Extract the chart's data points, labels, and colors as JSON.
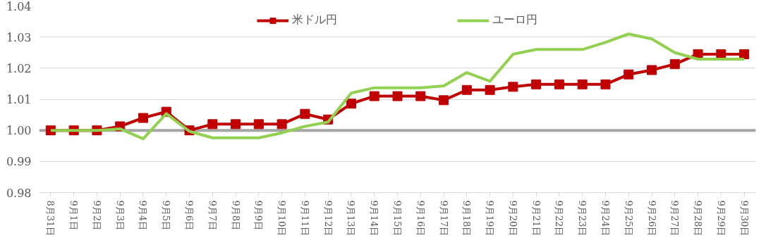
{
  "chart_data": {
    "type": "line",
    "categories": [
      "8月31日",
      "9月1日",
      "9月2日",
      "9月3日",
      "9月4日",
      "9月5日",
      "9月6日",
      "9月7日",
      "9月8日",
      "9月9日",
      "9月10日",
      "9月11日",
      "9月12日",
      "9月13日",
      "9月14日",
      "9月15日",
      "9月16日",
      "9月17日",
      "9月18日",
      "9月19日",
      "9月20日",
      "9月21日",
      "9月22日",
      "9月23日",
      "9月24日",
      "9月25日",
      "9月26日",
      "9月27日",
      "9月28日",
      "9月29日",
      "9月30日"
    ],
    "series": [
      {
        "name": "米ドル円",
        "color": "#c00000",
        "marker": "square",
        "values": [
          1.0,
          1.0,
          1.0,
          1.0013,
          1.004,
          1.006,
          1.0,
          1.002,
          1.002,
          1.002,
          1.002,
          1.0053,
          1.0035,
          1.0086,
          1.011,
          1.011,
          1.011,
          1.0097,
          1.013,
          1.013,
          1.014,
          1.0148,
          1.0148,
          1.0148,
          1.0148,
          1.018,
          1.0194,
          1.0213,
          1.0245,
          1.0245,
          1.0245
        ]
      },
      {
        "name": "ユーロ円",
        "color": "#92d050",
        "marker": "none",
        "values": [
          1.0,
          1.0,
          1.0,
          1.0005,
          0.9973,
          1.0054,
          0.9997,
          0.9976,
          0.9976,
          0.9976,
          0.9992,
          1.0013,
          1.0027,
          1.012,
          1.0137,
          1.0137,
          1.0137,
          1.0143,
          1.0186,
          1.0158,
          1.0245,
          1.026,
          1.026,
          1.026,
          1.0283,
          1.031,
          1.0294,
          1.025,
          1.0229,
          1.0229,
          1.0229
        ]
      }
    ],
    "ref_lines": [
      {
        "axis": "y",
        "value": 1.0,
        "label": null,
        "color": "#a5a5a5"
      }
    ],
    "ylim": [
      0.98,
      1.04
    ],
    "yticks": [
      {
        "value": 0.98,
        "label": "0.98"
      },
      {
        "value": 0.99,
        "label": "0.99"
      },
      {
        "value": 1.0,
        "label": "1.00"
      },
      {
        "value": 1.01,
        "label": "1.01"
      },
      {
        "value": 1.02,
        "label": "1.02"
      },
      {
        "value": 1.03,
        "label": "1.03"
      },
      {
        "value": 1.04,
        "label": "1.04"
      }
    ],
    "grid": "y",
    "legend": "top",
    "line_style": "solid"
  }
}
